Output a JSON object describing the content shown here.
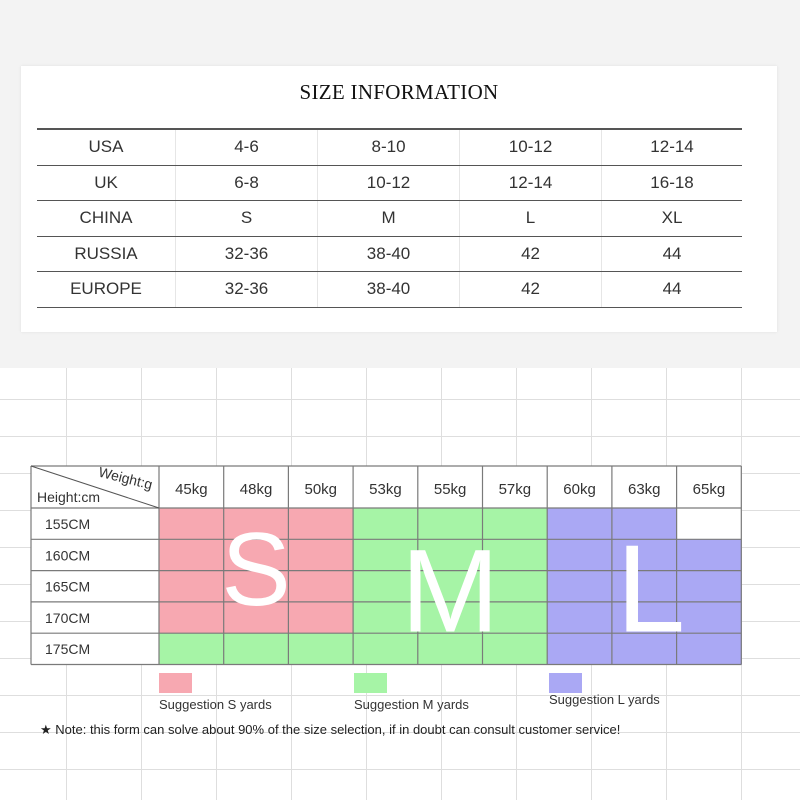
{
  "size_info": {
    "title": "SIZE INFORMATION",
    "rows": [
      {
        "label": "USA",
        "values": [
          "4-6",
          "8-10",
          "10-12",
          "12-14"
        ]
      },
      {
        "label": "UK",
        "values": [
          "6-8",
          "10-12",
          "12-14",
          "16-18"
        ]
      },
      {
        "label": "CHINA",
        "values": [
          "S",
          "M",
          "L",
          "XL"
        ]
      },
      {
        "label": "RUSSIA",
        "values": [
          "32-36",
          "38-40",
          "42",
          "44"
        ]
      },
      {
        "label": "EUROPE",
        "values": [
          "32-36",
          "38-40",
          "42",
          "44"
        ]
      }
    ]
  },
  "weight_chart": {
    "header_weight": "Weight:g",
    "header_height": "Height:cm",
    "weights": [
      "45kg",
      "48kg",
      "50kg",
      "53kg",
      "55kg",
      "57kg",
      "60kg",
      "63kg",
      "65kg"
    ],
    "heights": [
      "155CM",
      "160CM",
      "165CM",
      "170CM",
      "175CM"
    ],
    "cells": [
      [
        "S",
        "S",
        "S",
        "M",
        "M",
        "M",
        "L",
        "L",
        ""
      ],
      [
        "S",
        "S",
        "S",
        "M",
        "M",
        "M",
        "L",
        "L",
        "L"
      ],
      [
        "S",
        "S",
        "S",
        "M",
        "M",
        "M",
        "L",
        "L",
        "L"
      ],
      [
        "S",
        "S",
        "S",
        "M",
        "M",
        "M",
        "L",
        "L",
        "L"
      ],
      [
        "M",
        "M",
        "M",
        "M",
        "M",
        "M",
        "L",
        "L",
        "L"
      ]
    ],
    "big_letters": {
      "S": "S",
      "M": "M",
      "L": "L"
    },
    "colors": {
      "S": "#f7a8b1",
      "M": "#a6f4a6",
      "L": "#aaa8f4"
    },
    "legend": [
      {
        "key": "S",
        "label": "Suggestion S yards"
      },
      {
        "key": "M",
        "label": "Suggestion M yards"
      },
      {
        "key": "L",
        "label": "Suggestion L yards"
      }
    ],
    "note": "★ Note: this form can solve about 90% of the size selection, if in doubt can consult customer service!"
  }
}
